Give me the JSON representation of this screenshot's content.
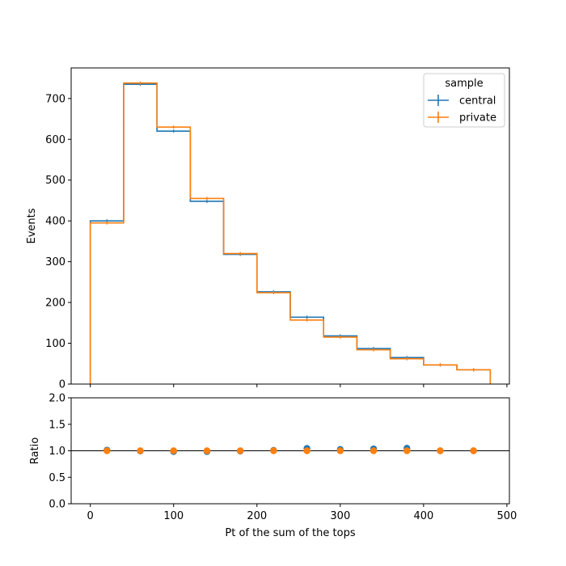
{
  "chart_data": [
    {
      "type": "step",
      "xlabel": "",
      "ylabel": "Events",
      "xlim": [
        -23,
        503
      ],
      "ylim": [
        0,
        775
      ],
      "yticks": [
        0,
        100,
        200,
        300,
        400,
        500,
        600,
        700
      ],
      "xticks": [
        0,
        100,
        200,
        300,
        400,
        500
      ],
      "bin_edges": [
        0,
        40,
        80,
        120,
        160,
        200,
        240,
        280,
        320,
        360,
        400,
        440,
        480
      ],
      "legend": {
        "title": "sample",
        "placement": "upper right"
      },
      "series": [
        {
          "name": "central",
          "color": "#1f77b4",
          "values": [
            400,
            735,
            620,
            448,
            318,
            226,
            164,
            118,
            87,
            65,
            47,
            35
          ]
        },
        {
          "name": "private",
          "color": "#ff7f0e",
          "values": [
            395,
            738,
            630,
            455,
            320,
            224,
            157,
            115,
            84,
            62,
            47,
            35
          ]
        }
      ]
    },
    {
      "type": "scatter",
      "xlabel": "Pt of the sum of the tops",
      "ylabel": "Ratio",
      "xlim": [
        -23,
        503
      ],
      "ylim": [
        0,
        2
      ],
      "yticks": [
        "0.0",
        "0.5",
        "1.0",
        "1.5",
        "2.0"
      ],
      "xticks": [
        0,
        100,
        200,
        300,
        400,
        500
      ],
      "reference_line": 1.0,
      "x": [
        20,
        60,
        100,
        140,
        180,
        220,
        260,
        300,
        340,
        380,
        420,
        460
      ],
      "series": [
        {
          "name": "central",
          "color": "#1f77b4",
          "values": [
            1.013,
            0.996,
            0.984,
            0.985,
            0.994,
            1.009,
            1.045,
            1.026,
            1.036,
            1.048,
            1.0,
            1.0
          ]
        },
        {
          "name": "private",
          "color": "#ff7f0e",
          "values": [
            1.0,
            1.0,
            1.0,
            1.0,
            1.0,
            1.0,
            1.0,
            1.0,
            1.0,
            1.0,
            1.0,
            1.0
          ]
        }
      ]
    }
  ]
}
